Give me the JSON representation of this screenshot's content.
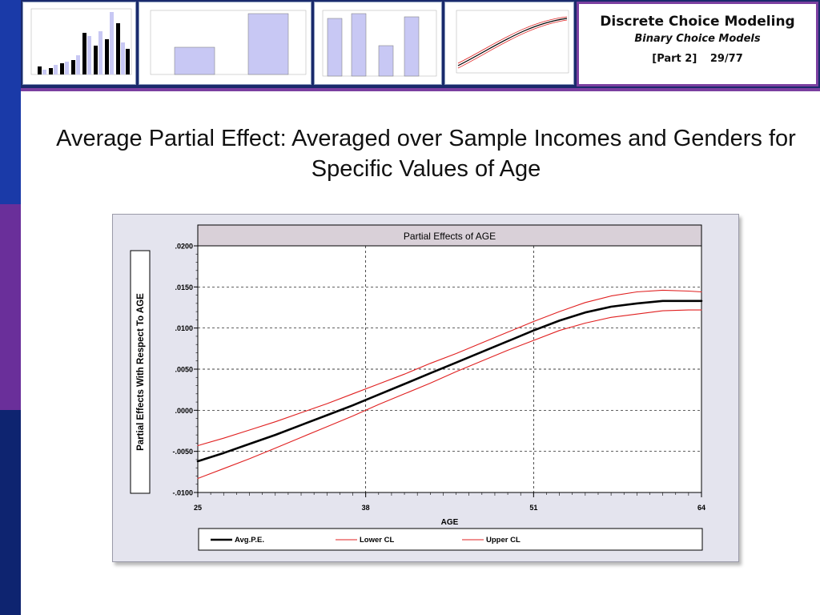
{
  "header": {
    "course_title": "Discrete Choice Modeling",
    "topic": "Binary Choice Models",
    "part": "[Part 2]",
    "slide_number": "29/77"
  },
  "slide_title": "Average Partial Effect: Averaged over Sample Incomes and Genders for Specific Values of Age",
  "colors": {
    "sidebar_top": "#1a3aa8",
    "sidebar_mid": "#6a2f9a",
    "sidebar_bottom": "#0e2470",
    "header_bg": "#1a2a6c",
    "accent": "#7b3fa0",
    "ci_color": "#e02020",
    "ape_color": "#000000",
    "plot_title_bg": "#d9d0d8"
  },
  "chart_data": {
    "type": "line",
    "title": "Partial Effects of AGE",
    "xlabel": "AGE",
    "ylabel": "Partial Effects With Respect To AGE",
    "xlim": [
      25,
      64
    ],
    "ylim": [
      -0.01,
      0.02
    ],
    "x_ticks": [
      25,
      38,
      51,
      64
    ],
    "x_tick_labels": [
      "25",
      "38",
      "51",
      "64"
    ],
    "y_ticks": [
      -0.01,
      -0.005,
      0.0,
      0.005,
      0.01,
      0.015,
      0.02
    ],
    "y_tick_labels": [
      "-.0100",
      "-.0050",
      ".0000",
      ".0050",
      ".0100",
      ".0150",
      ".0200"
    ],
    "grid": true,
    "legend_position": "bottom",
    "x": [
      25,
      27,
      29,
      31,
      33,
      35,
      37,
      39,
      41,
      43,
      45,
      47,
      49,
      51,
      53,
      55,
      57,
      59,
      61,
      63,
      64
    ],
    "series": [
      {
        "name": "Avg.P.E.",
        "color": "#000000",
        "values": [
          -0.0062,
          -0.0052,
          -0.0041,
          -0.003,
          -0.0018,
          -0.0006,
          0.0006,
          0.0019,
          0.0032,
          0.0045,
          0.0058,
          0.0071,
          0.0084,
          0.0097,
          0.0109,
          0.0119,
          0.0126,
          0.013,
          0.0133,
          0.0133,
          0.0133
        ]
      },
      {
        "name": "Lower CL",
        "color": "#e02020",
        "values": [
          -0.0083,
          -0.0071,
          -0.0059,
          -0.0046,
          -0.0033,
          -0.002,
          -0.0007,
          0.0007,
          0.002,
          0.0033,
          0.0047,
          0.006,
          0.0073,
          0.0085,
          0.0097,
          0.0106,
          0.0113,
          0.0117,
          0.0121,
          0.0122,
          0.0122
        ]
      },
      {
        "name": "Upper CL",
        "color": "#e02020",
        "values": [
          -0.0043,
          -0.0034,
          -0.0024,
          -0.0014,
          -0.0003,
          0.0008,
          0.002,
          0.0032,
          0.0044,
          0.0057,
          0.0069,
          0.0082,
          0.0095,
          0.0108,
          0.012,
          0.0131,
          0.0139,
          0.0144,
          0.0146,
          0.0145,
          0.0144
        ]
      }
    ]
  }
}
